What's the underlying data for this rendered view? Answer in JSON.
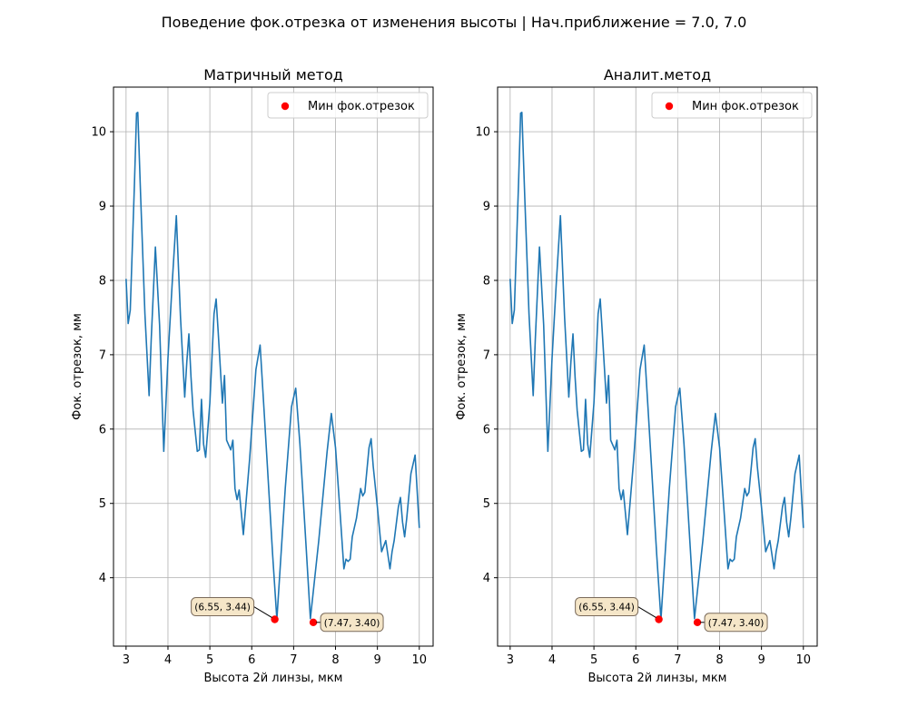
{
  "figure": {
    "suptitle": "Поведение фок.отрезка от изменения высоты | Нач.приближение = 7.0, 7.0"
  },
  "colors": {
    "line": "#1f77b4",
    "marker": "#ff0000",
    "grid": "#b0b0b0",
    "annotation_fill": "#f5e6c8",
    "annotation_edge": "#7a6a5a"
  },
  "chart_data": [
    {
      "type": "line",
      "title": "Матричный метод",
      "xlabel": "Высота 2й линзы, мкм",
      "ylabel": "Фок. отрезок, мм",
      "xlim": [
        2.7,
        10.33
      ],
      "ylim": [
        3.08,
        10.6
      ],
      "xticks": [
        3,
        4,
        5,
        6,
        7,
        8,
        9,
        10
      ],
      "yticks": [
        4,
        5,
        6,
        7,
        8,
        9,
        10
      ],
      "grid": true,
      "legend": {
        "position": "top-right",
        "entries": [
          "Мин фок.отрезок"
        ]
      },
      "series": [
        {
          "x": [
            3.0,
            3.05,
            3.1,
            3.2,
            3.25,
            3.28,
            3.35,
            3.45,
            3.55,
            3.6,
            3.7,
            3.8,
            3.9,
            4.0,
            4.1,
            4.2,
            4.3,
            4.4,
            4.45,
            4.5,
            4.55,
            4.6,
            4.7,
            4.75,
            4.8,
            4.85,
            4.9,
            5.0,
            5.1,
            5.15,
            5.2,
            5.3,
            5.35,
            5.4,
            5.5,
            5.55,
            5.6,
            5.65,
            5.7,
            5.8,
            5.95,
            6.1,
            6.2,
            6.3,
            6.5,
            6.6,
            6.8,
            6.95,
            7.05,
            7.15,
            7.3,
            7.4,
            7.6,
            7.8,
            7.9,
            8.0,
            8.1,
            8.2,
            8.25,
            8.3,
            8.35,
            8.4,
            8.5,
            8.6,
            8.65,
            8.7,
            8.8,
            8.85,
            8.9,
            9.0,
            9.1,
            9.2,
            9.3,
            9.35,
            9.4,
            9.5,
            9.55,
            9.6,
            9.65,
            9.7,
            9.8,
            9.9,
            10.0
          ],
          "y": [
            8.02,
            7.42,
            7.6,
            9.3,
            10.25,
            10.26,
            9.1,
            7.55,
            6.45,
            7.2,
            8.45,
            7.4,
            5.7,
            6.95,
            7.95,
            8.87,
            7.5,
            6.43,
            6.9,
            7.28,
            6.7,
            6.25,
            5.7,
            5.72,
            6.4,
            5.8,
            5.62,
            6.35,
            7.55,
            7.75,
            7.3,
            6.35,
            6.72,
            5.85,
            5.72,
            5.85,
            5.2,
            5.05,
            5.18,
            4.58,
            5.6,
            6.8,
            7.13,
            6.2,
            4.3,
            3.44,
            5.2,
            6.3,
            6.55,
            5.8,
            4.4,
            3.45,
            4.5,
            5.7,
            6.21,
            5.75,
            4.95,
            4.12,
            4.25,
            4.22,
            4.25,
            4.55,
            4.8,
            5.2,
            5.1,
            5.15,
            5.75,
            5.87,
            5.5,
            4.95,
            4.35,
            4.5,
            4.12,
            4.35,
            4.5,
            4.95,
            5.08,
            4.75,
            4.55,
            4.8,
            5.4,
            5.65,
            4.67
          ]
        }
      ],
      "minima": {
        "x": [
          6.55,
          7.47
        ],
        "y": [
          3.44,
          3.4
        ],
        "labels": [
          "(6.55, 3.44)",
          "(7.47, 3.40)"
        ]
      }
    },
    {
      "type": "line",
      "title": "Аналит.метод",
      "xlabel": "Высота 2й линзы, мкм",
      "ylabel": "Фок. отрезок, мм",
      "xlim": [
        2.7,
        10.33
      ],
      "ylim": [
        3.08,
        10.6
      ],
      "xticks": [
        3,
        4,
        5,
        6,
        7,
        8,
        9,
        10
      ],
      "yticks": [
        4,
        5,
        6,
        7,
        8,
        9,
        10
      ],
      "grid": true,
      "legend": {
        "position": "top-right",
        "entries": [
          "Мин фок.отрезок"
        ]
      },
      "series": [
        {
          "x": [
            3.0,
            3.05,
            3.1,
            3.2,
            3.25,
            3.28,
            3.35,
            3.45,
            3.55,
            3.6,
            3.7,
            3.8,
            3.9,
            4.0,
            4.1,
            4.2,
            4.3,
            4.4,
            4.45,
            4.5,
            4.55,
            4.6,
            4.7,
            4.75,
            4.8,
            4.85,
            4.9,
            5.0,
            5.1,
            5.15,
            5.2,
            5.3,
            5.35,
            5.4,
            5.5,
            5.55,
            5.6,
            5.65,
            5.7,
            5.8,
            5.95,
            6.1,
            6.2,
            6.3,
            6.5,
            6.6,
            6.8,
            6.95,
            7.05,
            7.15,
            7.3,
            7.4,
            7.6,
            7.8,
            7.9,
            8.0,
            8.1,
            8.2,
            8.25,
            8.3,
            8.35,
            8.4,
            8.5,
            8.6,
            8.65,
            8.7,
            8.8,
            8.85,
            8.9,
            9.0,
            9.1,
            9.2,
            9.3,
            9.35,
            9.4,
            9.5,
            9.55,
            9.6,
            9.65,
            9.7,
            9.8,
            9.9,
            10.0
          ],
          "y": [
            8.02,
            7.42,
            7.6,
            9.3,
            10.25,
            10.26,
            9.1,
            7.55,
            6.45,
            7.2,
            8.45,
            7.4,
            5.7,
            6.95,
            7.95,
            8.87,
            7.5,
            6.43,
            6.9,
            7.28,
            6.7,
            6.25,
            5.7,
            5.72,
            6.4,
            5.8,
            5.62,
            6.35,
            7.55,
            7.75,
            7.3,
            6.35,
            6.72,
            5.85,
            5.72,
            5.85,
            5.2,
            5.05,
            5.18,
            4.58,
            5.6,
            6.8,
            7.13,
            6.2,
            4.3,
            3.44,
            5.2,
            6.3,
            6.55,
            5.8,
            4.4,
            3.45,
            4.5,
            5.7,
            6.21,
            5.75,
            4.95,
            4.12,
            4.25,
            4.22,
            4.25,
            4.55,
            4.8,
            5.2,
            5.1,
            5.15,
            5.75,
            5.87,
            5.5,
            4.95,
            4.35,
            4.5,
            4.12,
            4.35,
            4.5,
            4.95,
            5.08,
            4.75,
            4.55,
            4.8,
            5.4,
            5.65,
            4.67
          ]
        }
      ],
      "minima": {
        "x": [
          6.55,
          7.47
        ],
        "y": [
          3.44,
          3.4
        ],
        "labels": [
          "(6.55, 3.44)",
          "(7.47, 3.40)"
        ]
      }
    }
  ]
}
